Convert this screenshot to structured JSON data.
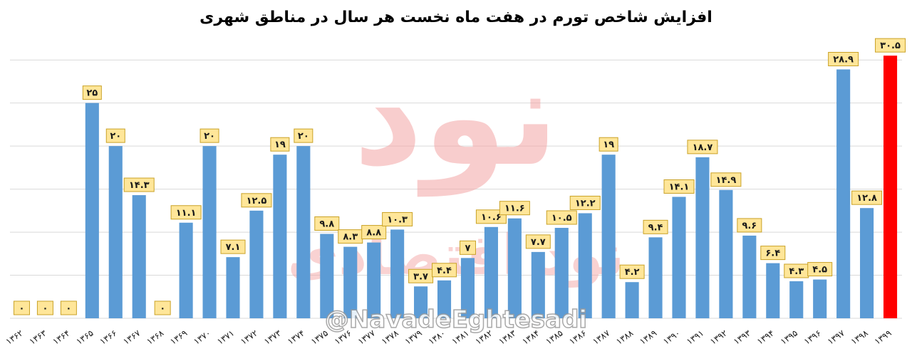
{
  "chart_data": {
    "type": "bar",
    "title": "افزایش شاخص تورم در هفت ماه نخست هر سال در مناطق شهری",
    "xlabel": "",
    "ylabel": "",
    "ylim": [
      0,
      32
    ],
    "grid": true,
    "categories": [
      "۱۳۶۲",
      "۱۳۶۳",
      "۱۳۶۴",
      "۱۳۶۵",
      "۱۳۶۶",
      "۱۳۶۷",
      "۱۳۶۸",
      "۱۳۶۹",
      "۱۳۷۰",
      "۱۳۷۱",
      "۱۳۷۲",
      "۱۳۷۳",
      "۱۳۷۴",
      "۱۳۷۵",
      "۱۳۷۶",
      "۱۳۷۷",
      "۱۳۷۸",
      "۱۳۷۹",
      "۱۳۸۰",
      "۱۳۸۱",
      "۱۳۸۲",
      "۱۳۸۳",
      "۱۳۸۴",
      "۱۳۸۵",
      "۱۳۸۶",
      "۱۳۸۷",
      "۱۳۸۸",
      "۱۳۸۹",
      "۱۳۹۰",
      "۱۳۹۱",
      "۱۳۹۲",
      "۱۳۹۳",
      "۱۳۹۴",
      "۱۳۹۵",
      "۱۳۹۶",
      "۱۳۹۷",
      "۱۳۹۸",
      "۱۳۹۹"
    ],
    "values": [
      0,
      0,
      0,
      25,
      20,
      14.3,
      0,
      11.1,
      20,
      7.1,
      12.5,
      19,
      20,
      9.8,
      8.3,
      8.8,
      10.3,
      3.7,
      4.4,
      7,
      10.6,
      11.6,
      7.7,
      10.5,
      12.2,
      19,
      4.2,
      9.4,
      14.1,
      18.7,
      14.9,
      9.6,
      6.4,
      4.3,
      4.5,
      28.9,
      12.8,
      30.5
    ],
    "labels": [
      "۰",
      "۰",
      "۰",
      "۲۵",
      "۲۰",
      "۱۴.۳",
      "۰",
      "۱۱.۱",
      "۲۰",
      "۷.۱",
      "۱۲.۵",
      "۱۹",
      "۲۰",
      "۹.۸",
      "۸.۳",
      "۸.۸",
      "۱۰.۳",
      "۳.۷",
      "۴.۴",
      "۷",
      "۱۰.۶",
      "۱۱.۶",
      "۷.۷",
      "۱۰.۵",
      "۱۲.۲",
      "۱۹",
      "۴.۲",
      "۹.۴",
      "۱۴.۱",
      "۱۸.۷",
      "۱۴.۹",
      "۹.۶",
      "۶.۴",
      "۴.۳",
      "۴.۵",
      "۲۸.۹",
      "۱۲.۸",
      "۳۰.۵"
    ],
    "highlight_index": 37,
    "colors": {
      "bar": "#5b9bd5",
      "highlight": "#ff0000",
      "label_bg": "#ffe699",
      "label_border": "#c9a227",
      "grid": "#d9d9d9"
    }
  },
  "watermark": {
    "logo_text": "نود",
    "text": "نود اقتصادی",
    "handle": "@NavadeEghtesadi",
    "color": "#f4a6a6"
  }
}
